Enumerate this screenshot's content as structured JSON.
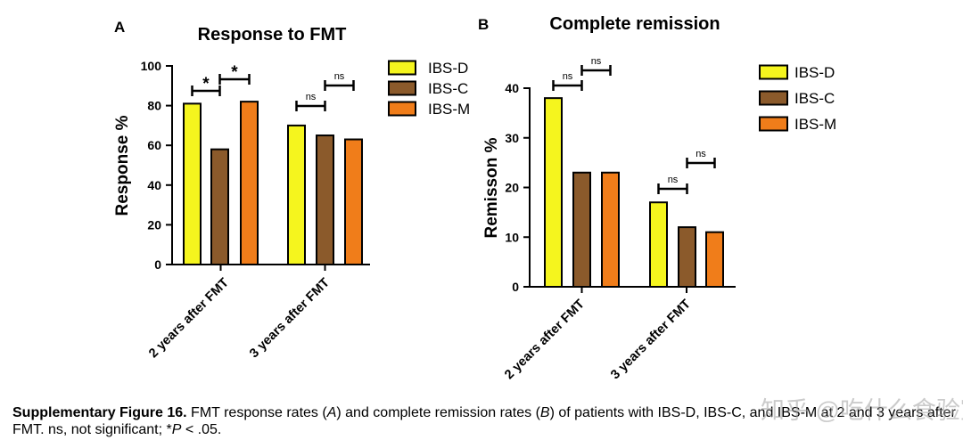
{
  "chart_data": [
    {
      "panel": "A",
      "type": "bar",
      "title": "Response to FMT",
      "ylabel": "Response %",
      "xlabel": "",
      "ylim": [
        0,
        100
      ],
      "yticks": [
        0,
        20,
        40,
        60,
        80,
        100
      ],
      "categories": [
        "2 years after FMT",
        "3 years after FMT"
      ],
      "series": [
        {
          "name": "IBS-D",
          "values": [
            81,
            70
          ],
          "color": "#f5f51e"
        },
        {
          "name": "IBS-C",
          "values": [
            58,
            65
          ],
          "color": "#8b5a2b"
        },
        {
          "name": "IBS-M",
          "values": [
            82,
            63
          ],
          "color": "#f07d1a"
        }
      ],
      "significance": [
        {
          "category": 0,
          "between": [
            0,
            1
          ],
          "label": "*"
        },
        {
          "category": 0,
          "between": [
            1,
            2
          ],
          "label": "*"
        },
        {
          "category": 1,
          "between": [
            0,
            1
          ],
          "label": "ns"
        },
        {
          "category": 1,
          "between": [
            1,
            2
          ],
          "label": "ns"
        }
      ],
      "legend_position": "top-right"
    },
    {
      "panel": "B",
      "type": "bar",
      "title": "Complete remission",
      "ylabel": "Remisson %",
      "xlabel": "",
      "ylim": [
        0,
        40
      ],
      "yticks": [
        0,
        10,
        20,
        30,
        40
      ],
      "categories": [
        "2 years after FMT",
        "3 years after FMT"
      ],
      "series": [
        {
          "name": "IBS-D",
          "values": [
            38,
            17
          ],
          "color": "#f5f51e"
        },
        {
          "name": "IBS-C",
          "values": [
            23,
            12
          ],
          "color": "#8b5a2b"
        },
        {
          "name": "IBS-M",
          "values": [
            23,
            11
          ],
          "color": "#f07d1a"
        }
      ],
      "significance": [
        {
          "category": 0,
          "between": [
            0,
            1
          ],
          "label": "ns"
        },
        {
          "category": 0,
          "between": [
            1,
            2
          ],
          "label": "ns"
        },
        {
          "category": 1,
          "between": [
            0,
            1
          ],
          "label": "ns"
        },
        {
          "category": 1,
          "between": [
            1,
            2
          ],
          "label": "ns"
        }
      ],
      "legend_position": "top-right"
    }
  ],
  "caption": {
    "bold": "Supplementary Figure 16.",
    "seg1": " FMT response rates (",
    "a": "A",
    "seg2": ") and complete remission rates (",
    "b": "B",
    "seg3": ") of patients with IBS-D, IBS-C, and IBS-M at 2 and 3 years after FMT. ns, not significant; *",
    "p": "P",
    "seg4": " < .05."
  },
  "watermark": "知乎 @吃什么食验室"
}
